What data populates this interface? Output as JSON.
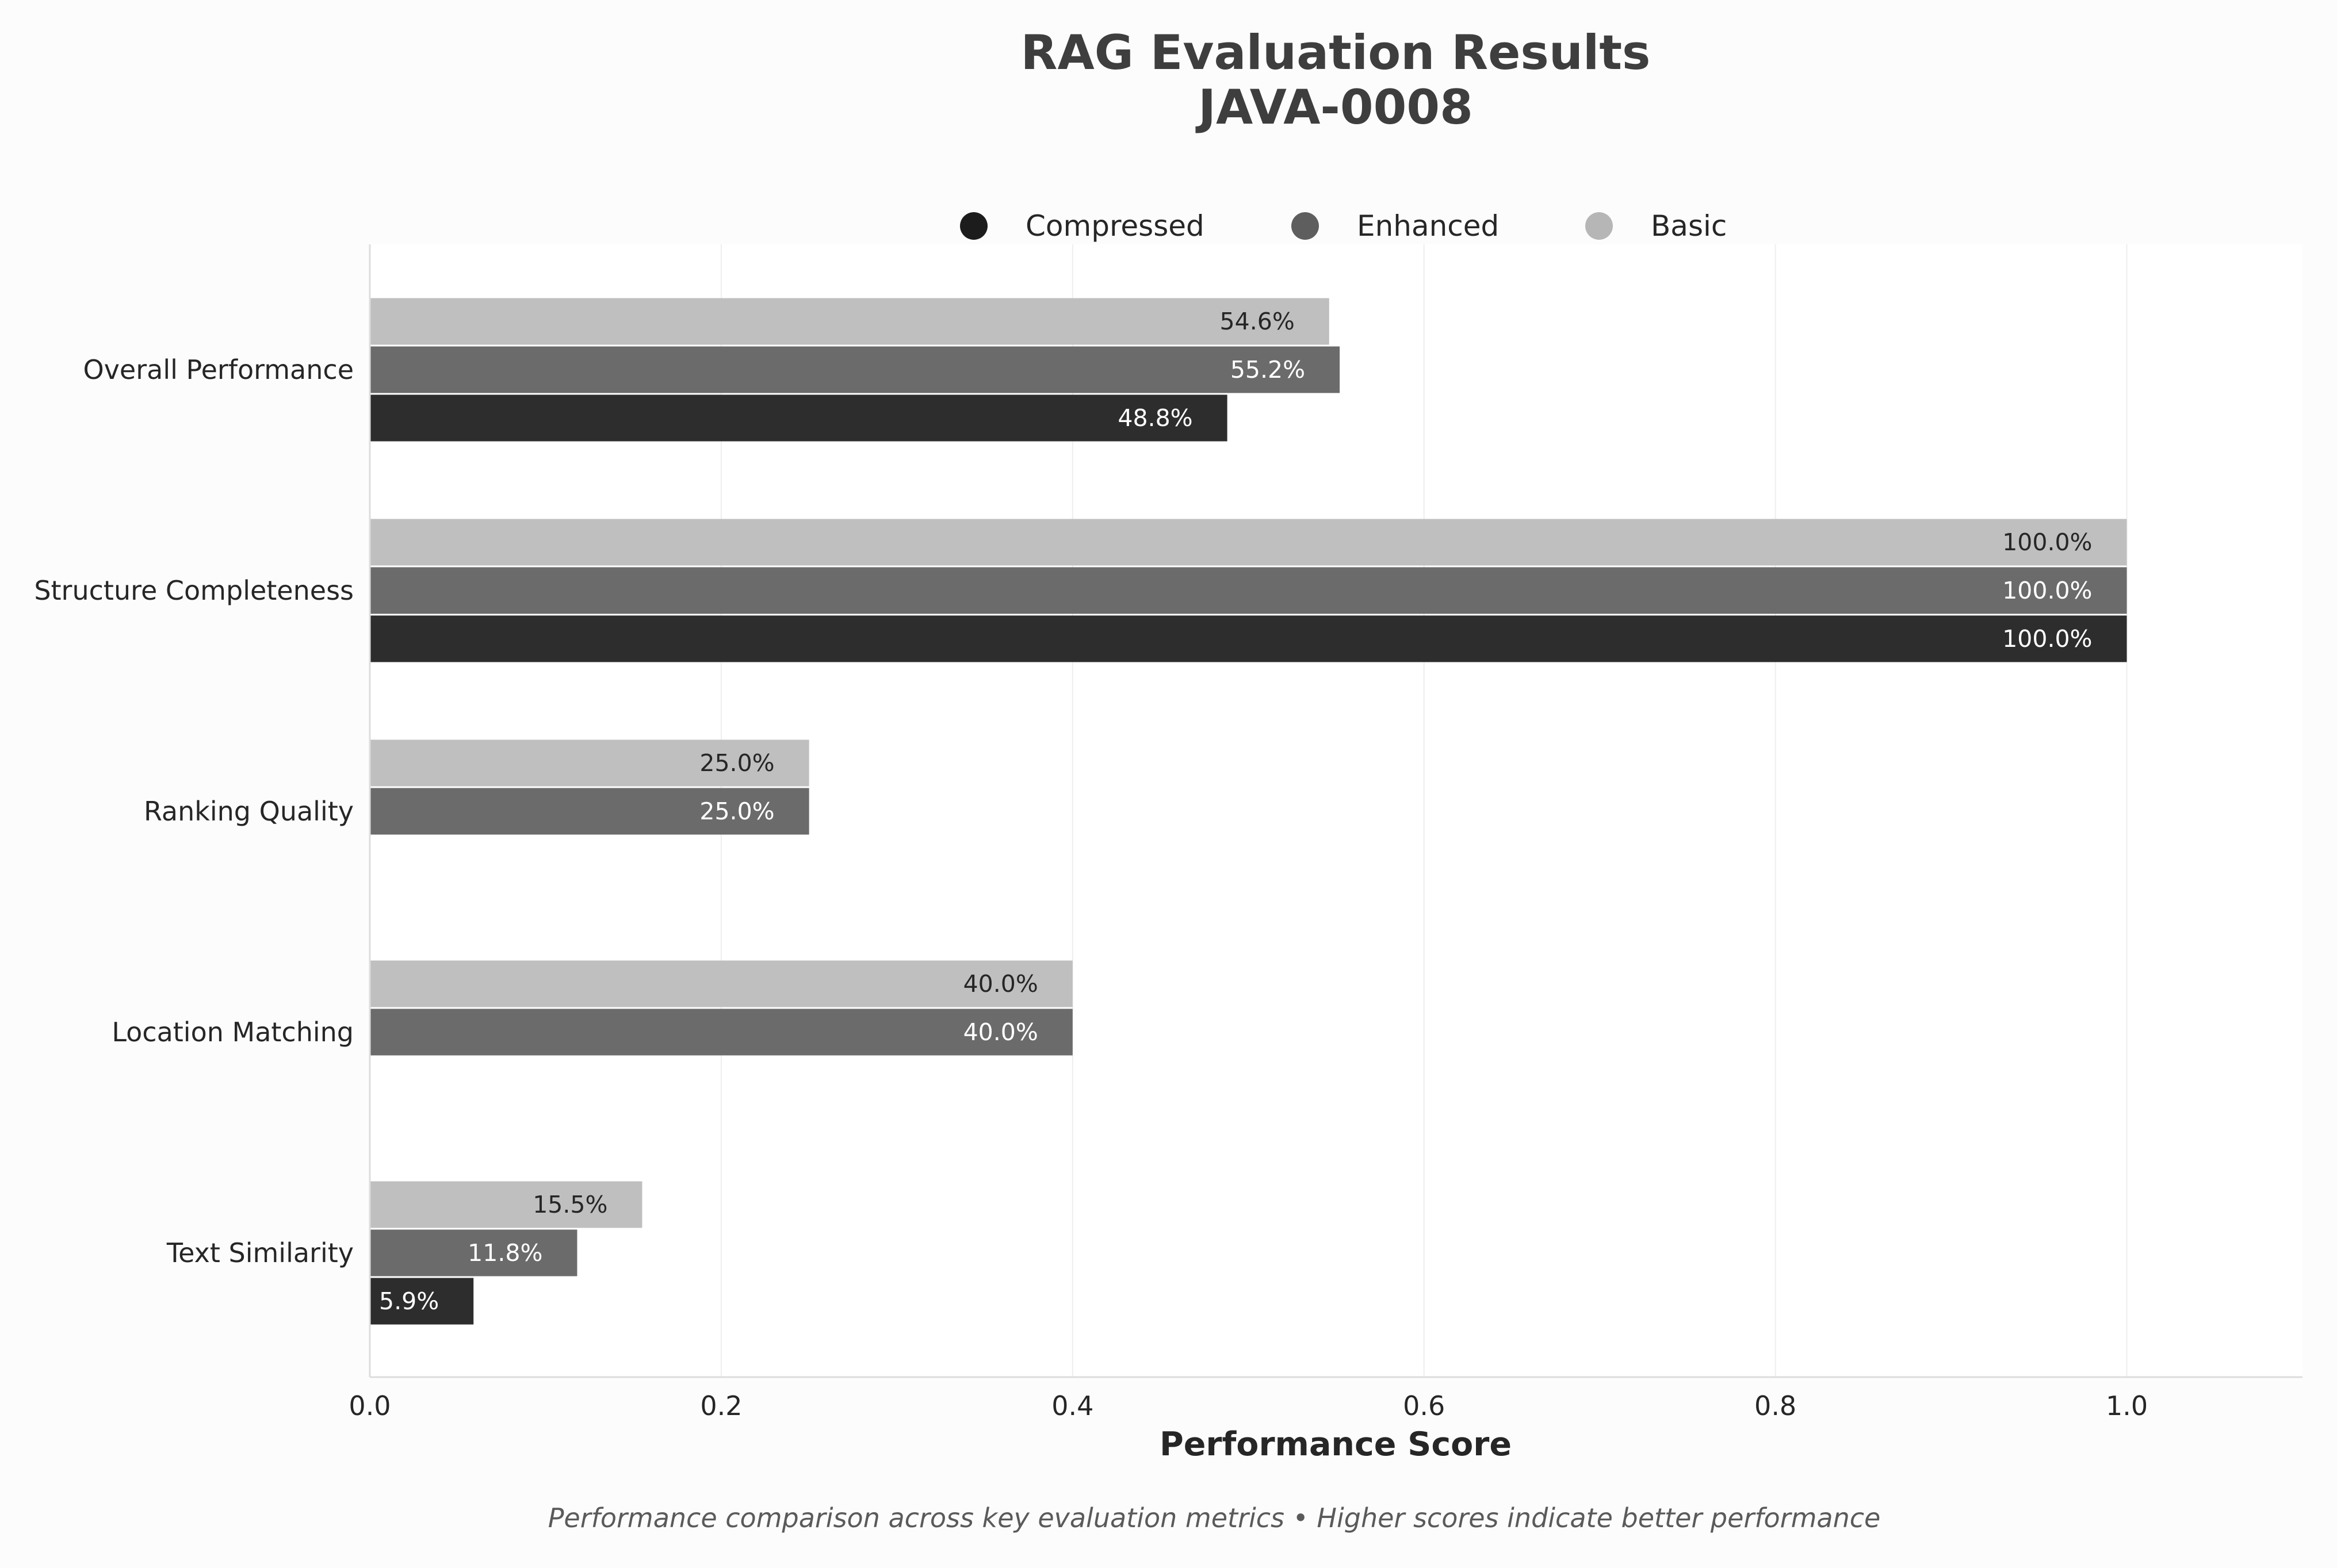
{
  "chart_data": {
    "type": "bar",
    "orientation": "horizontal",
    "title": "RAG Evaluation Results",
    "subtitle": "JAVA-0008",
    "xlabel": "Performance Score",
    "ylabel": "",
    "xlim": [
      0,
      1.1
    ],
    "xticks": [
      0.0,
      0.2,
      0.4,
      0.6,
      0.8,
      1.0
    ],
    "xtick_labels": [
      "0.0",
      "0.2",
      "0.4",
      "0.6",
      "0.8",
      "1.0"
    ],
    "grid": "vertical",
    "legend_position": "top-center",
    "categories": [
      "Overall Performance",
      "Structure Completeness",
      "Ranking Quality",
      "Location Matching",
      "Text Similarity"
    ],
    "series": [
      {
        "name": "Compressed",
        "color": "#2d2d2d",
        "legend_color": "#1c1c1c",
        "label_color": "#ffffff",
        "values": [
          0.488,
          1.0,
          null,
          null,
          0.059
        ],
        "labels": [
          "48.8%",
          "100.0%",
          null,
          null,
          "5.9%"
        ]
      },
      {
        "name": "Enhanced",
        "color": "#6b6b6b",
        "legend_color": "#5e5e5e",
        "label_color": "#ffffff",
        "values": [
          0.552,
          1.0,
          0.25,
          0.4,
          0.118
        ],
        "labels": [
          "55.2%",
          "100.0%",
          "25.0%",
          "40.0%",
          "11.8%"
        ]
      },
      {
        "name": "Basic",
        "color": "#bfbfbf",
        "legend_color": "#b6b6b6",
        "label_color": "#262626",
        "values": [
          0.546,
          1.0,
          0.25,
          0.4,
          0.155
        ],
        "labels": [
          "54.6%",
          "100.0%",
          "25.0%",
          "40.0%",
          "15.5%"
        ]
      }
    ],
    "footnote": "Performance comparison across key evaluation metrics • Higher scores indicate better performance"
  }
}
